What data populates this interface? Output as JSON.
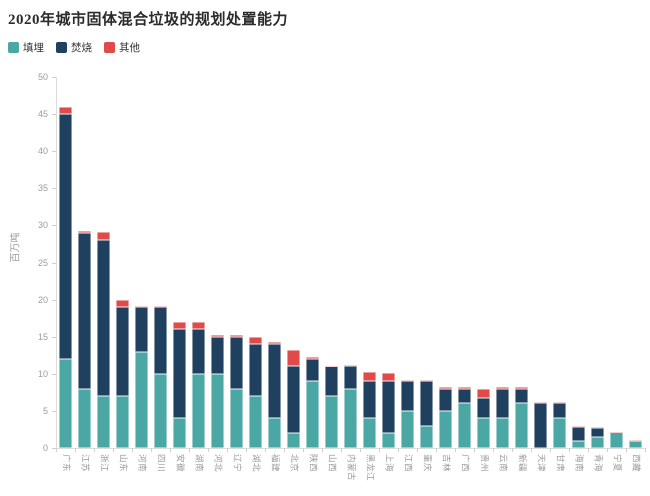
{
  "header": {
    "title": "2020年城市固体混合垃圾的规划处置能力"
  },
  "legend": {
    "items": [
      {
        "label": "填埋",
        "color": "#4AA7A4"
      },
      {
        "label": "焚烧",
        "color": "#20405F"
      },
      {
        "label": "其他",
        "color": "#E04A48"
      }
    ]
  },
  "axes": {
    "y_ticks": [
      "0",
      "5",
      "10",
      "15",
      "20",
      "25",
      "30",
      "35",
      "40",
      "45",
      "50"
    ],
    "y_axis_title": "百万吨"
  },
  "colors": {
    "landfill": "#4AA7A4",
    "incineration": "#20405F",
    "other": "#E04A48",
    "axis_line": "#dcdcdc",
    "axis_text": "#9b9b9b",
    "title_text": "#2b2b2b"
  },
  "chart_data": {
    "type": "bar",
    "stacked": true,
    "title": "2020年城市固体混合垃圾的规划处置能力",
    "xlabel": "",
    "ylabel": "百万吨",
    "ylim": [
      0,
      50
    ],
    "ytick_step": 5,
    "grid": false,
    "legend_position": "top-left",
    "categories": [
      "广东",
      "江苏",
      "浙江",
      "山东",
      "河南",
      "四川",
      "安徽",
      "湖南",
      "河北",
      "辽宁",
      "湖北",
      "福建",
      "北京",
      "陕西",
      "山西",
      "内蒙古",
      "黑龙江",
      "上海",
      "江西",
      "重庆",
      "吉林",
      "广西",
      "贵州",
      "云南",
      "新疆",
      "天津",
      "甘肃",
      "海南",
      "青海",
      "宁夏",
      "西藏"
    ],
    "series": [
      {
        "name": "填埋",
        "color": "#4AA7A4",
        "values": [
          12,
          8,
          7,
          7,
          13,
          10,
          4,
          10,
          10,
          8,
          7,
          4,
          2,
          9,
          7,
          8,
          4,
          2,
          5,
          3,
          5,
          6,
          4,
          4,
          6,
          0,
          4,
          1,
          1.5,
          2.1,
          1
        ]
      },
      {
        "name": "焚烧",
        "color": "#20405F",
        "values": [
          33,
          21,
          21,
          12,
          6,
          9,
          12,
          6,
          5,
          7,
          7,
          10,
          9,
          3,
          4,
          3,
          5,
          7,
          4,
          6,
          3,
          2,
          2.7,
          4,
          2,
          6,
          2,
          1.8,
          1.2,
          0,
          0
        ]
      },
      {
        "name": "其他",
        "color": "#E04A48",
        "values": [
          1,
          0.2,
          1.1,
          1,
          0.2,
          0.2,
          1,
          1,
          0.2,
          0.2,
          1,
          0.3,
          2.2,
          0.2,
          0.1,
          0.2,
          1.2,
          1.1,
          0.2,
          0.1,
          0.2,
          0.2,
          1.3,
          0.2,
          0.2,
          0.2,
          0.2,
          0.2,
          0.1,
          0.1,
          0.1
        ]
      }
    ]
  }
}
